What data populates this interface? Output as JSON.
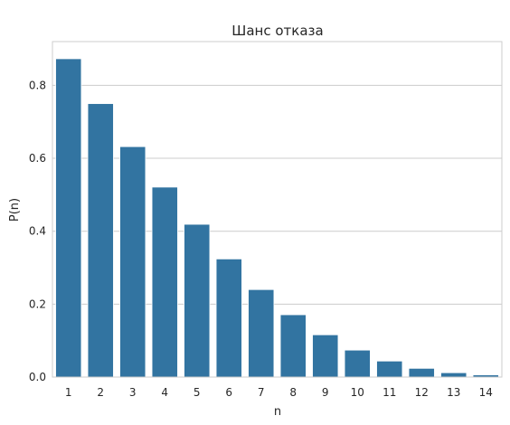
{
  "chart_data": {
    "type": "bar",
    "title": "Шанс отказа",
    "xlabel": "n",
    "ylabel": "P(n)",
    "categories": [
      "1",
      "2",
      "3",
      "4",
      "5",
      "6",
      "7",
      "8",
      "9",
      "10",
      "11",
      "12",
      "13",
      "14"
    ],
    "values": [
      0.873,
      0.75,
      0.632,
      0.521,
      0.419,
      0.324,
      0.24,
      0.171,
      0.116,
      0.074,
      0.044,
      0.024,
      0.012,
      0.006
    ],
    "ylim": [
      0,
      0.92
    ],
    "yticks": [
      0.0,
      0.2,
      0.4,
      0.6,
      0.8
    ],
    "ytick_labels": [
      "0.0",
      "0.2",
      "0.4",
      "0.6",
      "0.8"
    ],
    "grid": true,
    "grid_axis": "y",
    "bar_color": "#3274a1",
    "background_color": "#ffffff",
    "grid_color": "#cccccc"
  }
}
